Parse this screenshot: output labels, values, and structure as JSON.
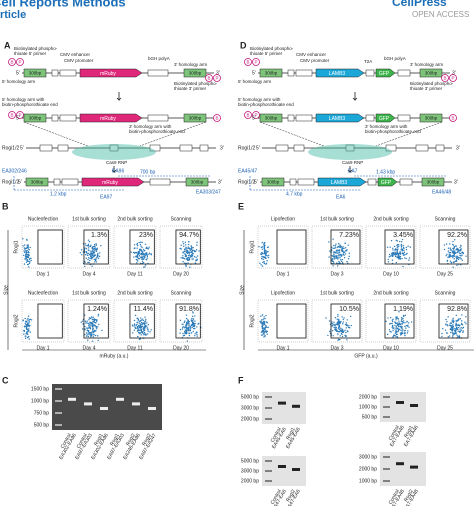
{
  "header": {
    "journal": "Cell Reports Methods",
    "article_type": "Article",
    "publisher": "CellPress",
    "access": "OPEN ACCESS"
  },
  "common": {
    "five": "5'",
    "three": "3'",
    "arm": "300bp",
    "cmv_enh": "CMV enhancer",
    "cmv_pro": "CMV promoter",
    "polya": "bGH polyA",
    "arm3": "3' homology arm",
    "arm5": "5' homology arm",
    "primer5": [
      "Biotinylated phospho-",
      "thioate 5' primer"
    ],
    "primer3": [
      "Biotinylated phospho-",
      "thioate 3' primer"
    ],
    "arm5b": [
      "5' homology arm with",
      "biotin-phosphorothioate end"
    ],
    "arm3b": [
      "3' homology arm with",
      "biotin-phosphorothioate end"
    ],
    "locus": "Rogi1/2",
    "cas9": "Cas9 RNP",
    "biotin": "B",
    "phospho": "P"
  },
  "panel_a": {
    "label": "A",
    "insert": "mRuby",
    "fwd": "EA302/246",
    "in_f": "EA96",
    "short": "700 bp",
    "long": "1.2 kbp",
    "in_r": "EA97",
    "rev": "EA303/247"
  },
  "panel_d": {
    "label": "D",
    "insert": "LAMB3",
    "t2a": "T2A",
    "gfp": "GFP",
    "fwd": "EA45/47",
    "in_f": "EA7",
    "short": "1.43 kbp",
    "long": "4.7 kbp",
    "in_r": "EA6",
    "rev": "EA46/48"
  },
  "panel_b": {
    "label": "B",
    "steps": [
      "Nucleofection",
      "1st bulk sorting",
      "2nd bulk sorting",
      "Scanning"
    ],
    "rows": [
      {
        "name": "Rogi1",
        "pct": [
          null,
          "1.3%",
          "23%",
          "94.7%"
        ],
        "days": [
          "Day 1",
          "Day 4",
          "Day 11",
          "Day 20"
        ]
      },
      {
        "name": "Rogi2",
        "pct": [
          null,
          "1.24%",
          "11.4%",
          "91.8%"
        ],
        "days": [
          "Day 1",
          "Day 4",
          "Day 11",
          "Day 20"
        ]
      }
    ],
    "y_label": "Size",
    "x_label": "mRuby (a.u.)"
  },
  "panel_e": {
    "label": "E",
    "steps": [
      "Lipofection",
      "1st bulk sorting",
      "2nd bulk sorting",
      "Scanning"
    ],
    "rows": [
      {
        "name": "Rogi1",
        "pct": [
          null,
          "7.23%",
          "3.45%",
          "92.2%"
        ],
        "days": [
          "Day 1",
          "Day 3",
          "Day 10",
          "Day 25"
        ]
      },
      {
        "name": "Rogi2",
        "pct": [
          null,
          "10.5%",
          "1.19%",
          "92.8%"
        ],
        "days": [
          "Day 1",
          "Day 3",
          "Day 10",
          "Day 25"
        ]
      }
    ],
    "y_label": "Size",
    "x_label": "GFP (a.u.)"
  },
  "panel_c": {
    "label": "C",
    "ladder": [
      "1500 bp",
      "1000 bp",
      "750 bp",
      "500 bp"
    ],
    "lanes": [
      [
        "Control",
        "EA302-EA96"
      ],
      [
        "Control",
        "EA97-EA303"
      ],
      [
        "Rogi1",
        "EA302-EA96"
      ],
      [
        "Rogi1",
        "EA97-EA303"
      ],
      [
        "Rogi2",
        "EA246-EA96"
      ],
      [
        "Rogi2",
        "EA97-EA247"
      ]
    ]
  },
  "panel_f": {
    "label": "F",
    "gels": [
      {
        "ladder": [
          "5000 bp",
          "3000 bp",
          "2000 bp"
        ],
        "lanes": [
          [
            "Control",
            "EA45-EA6"
          ],
          [
            "Rogi1",
            "EA45-EA6"
          ]
        ]
      },
      {
        "ladder": [
          "2000 bp",
          "1000 bp",
          "500 bp"
        ],
        "lanes": [
          [
            "Control",
            "EA7-EA46"
          ],
          [
            "Rogi1",
            "EA7-EA46"
          ]
        ]
      },
      {
        "ladder": [
          "5000 bp",
          "3000 bp",
          "2000 bp"
        ],
        "lanes": [
          [
            "Control",
            "EA47-EA6"
          ],
          [
            "Rogi2",
            "EA47-EA6"
          ]
        ]
      },
      {
        "ladder": [
          "3000 bp",
          "2000 bp",
          "1000 bp"
        ],
        "lanes": [
          [
            "Control",
            "EA7-EA48"
          ],
          [
            "Rogi2",
            "EA7-EA48"
          ]
        ]
      }
    ]
  }
}
